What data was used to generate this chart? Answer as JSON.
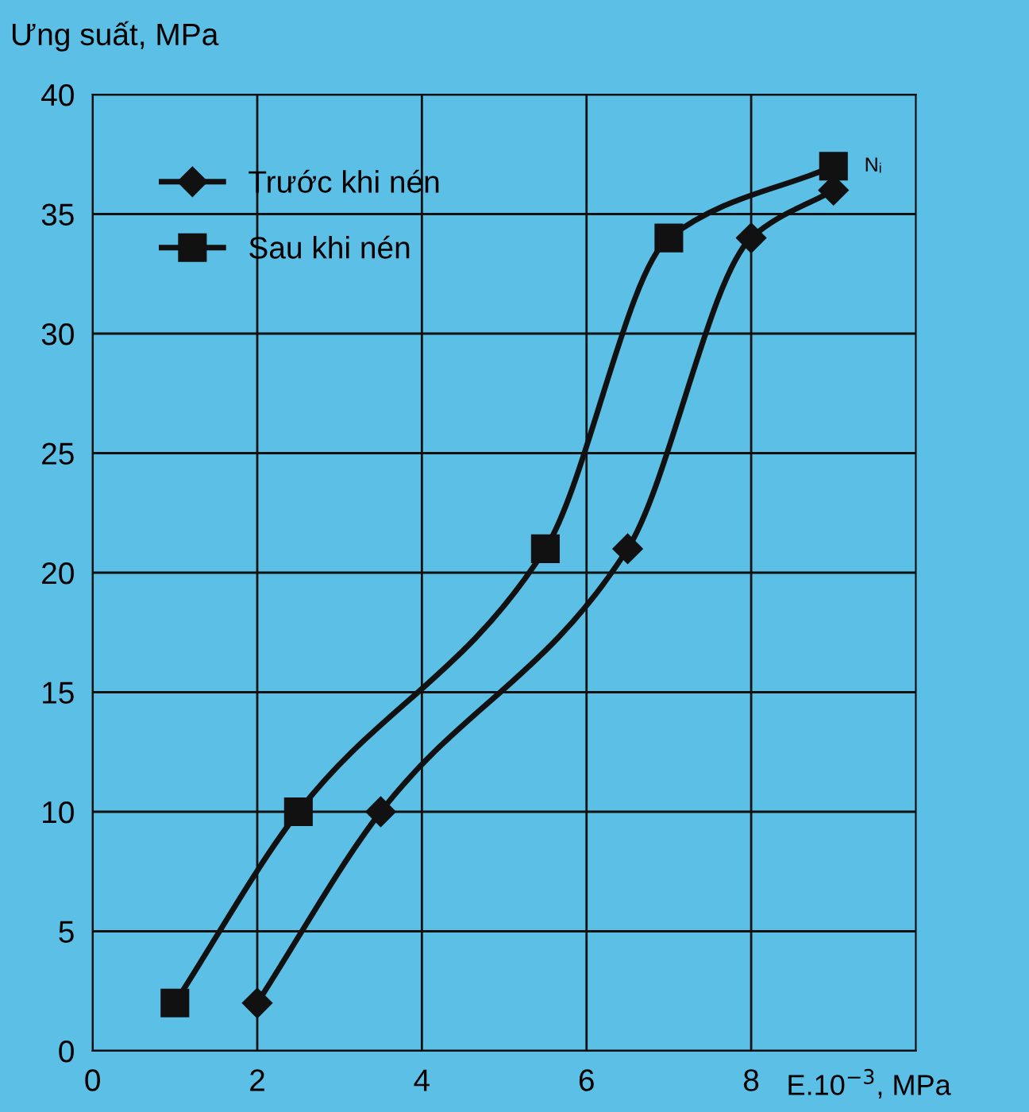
{
  "chart_data": {
    "type": "line",
    "xlabel": "E.10$^{−3}$, MPa",
    "ylabel": "Ưng suất, MPa",
    "xlim": [
      0,
      10
    ],
    "ylim": [
      0,
      40
    ],
    "xticks": [
      0,
      2,
      4,
      6,
      8
    ],
    "yticks": [
      0,
      5,
      10,
      15,
      20,
      25,
      30,
      35,
      40
    ],
    "grid": true,
    "legend": "top left",
    "line_style": "solid",
    "series": [
      {
        "name": "Trước khi nén",
        "color": "#111111",
        "marker": "diamond",
        "x": [
          2,
          3.5,
          6.5,
          8,
          9
        ],
        "values": [
          2,
          10,
          21,
          34,
          36
        ]
      },
      {
        "name": "Sau khi nén",
        "color": "#111111",
        "marker": "square",
        "x": [
          1,
          2.5,
          5.5,
          7,
          9
        ],
        "values": [
          2,
          10,
          21,
          34,
          37
        ]
      }
    ],
    "annotations": [
      {
        "text": "Nᵢ",
        "x": 9,
        "y": 37
      }
    ]
  }
}
